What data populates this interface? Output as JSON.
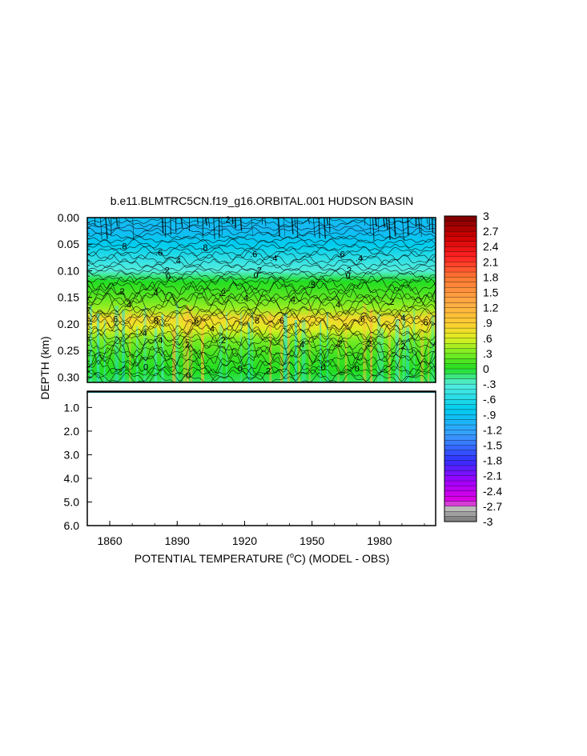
{
  "chart_data": {
    "type": "heatmap",
    "title": "b.e11.BLMTRC5CN.f19_g16.ORBITAL.001 HUDSON BASIN",
    "xlabel_pre": "POTENTIAL TEMPERATURE (",
    "xlabel_sup": "o",
    "xlabel_post": "C) (MODEL - OBS)",
    "ylabel": "DEPTH (km)",
    "xlim": [
      1850,
      2005
    ],
    "x_ticks": [
      1860,
      1890,
      1920,
      1950,
      1980
    ],
    "upper_panel": {
      "ylim": [
        0.0,
        0.31
      ],
      "y_ticks": [
        "0.00",
        "0.05",
        "0.10",
        "0.15",
        "0.20",
        "0.25",
        "0.30"
      ],
      "depth_profile": [
        {
          "depth": 0.0,
          "value": -0.9
        },
        {
          "depth": 0.02,
          "value": -1.0
        },
        {
          "depth": 0.05,
          "value": -0.8
        },
        {
          "depth": 0.08,
          "value": -0.5
        },
        {
          "depth": 0.1,
          "value": -0.3
        },
        {
          "depth": 0.12,
          "value": 0.0
        },
        {
          "depth": 0.15,
          "value": 0.2
        },
        {
          "depth": 0.17,
          "value": 0.4
        },
        {
          "depth": 0.19,
          "value": 0.8
        },
        {
          "depth": 0.21,
          "value": 0.6
        },
        {
          "depth": 0.23,
          "value": 0.3
        },
        {
          "depth": 0.26,
          "value": 0.1
        },
        {
          "depth": 0.29,
          "value": 0.0
        },
        {
          "depth": 0.31,
          "value": -0.1
        }
      ],
      "contour_labels": [
        {
          "x": 1912,
          "depth": 0.005,
          "text": ".2"
        },
        {
          "x": 1866,
          "depth": 0.055,
          "text": ".8"
        },
        {
          "x": 1902,
          "depth": 0.057,
          "text": ".8"
        },
        {
          "x": 1882,
          "depth": 0.067,
          "text": ".6"
        },
        {
          "x": 1890,
          "depth": 0.082,
          "text": ".4"
        },
        {
          "x": 1924,
          "depth": 0.07,
          "text": ".6"
        },
        {
          "x": 1933,
          "depth": 0.078,
          "text": ".4"
        },
        {
          "x": 1963,
          "depth": 0.07,
          "text": ".6"
        },
        {
          "x": 1971,
          "depth": 0.078,
          "text": ".4"
        },
        {
          "x": 1885,
          "depth": 0.1,
          "text": ".2"
        },
        {
          "x": 1886,
          "depth": 0.112,
          "text": "0"
        },
        {
          "x": 1926,
          "depth": 0.1,
          "text": ".2"
        },
        {
          "x": 1925,
          "depth": 0.11,
          "text": "0"
        },
        {
          "x": 1966,
          "depth": 0.1,
          "text": ".2"
        },
        {
          "x": 1966,
          "depth": 0.11,
          "text": "0"
        },
        {
          "x": 1865,
          "depth": 0.14,
          "text": ".2"
        },
        {
          "x": 1880,
          "depth": 0.142,
          "text": ".4"
        },
        {
          "x": 1910,
          "depth": 0.143,
          "text": ".2"
        },
        {
          "x": 1950,
          "depth": 0.128,
          "text": ".5"
        },
        {
          "x": 1920,
          "depth": 0.152,
          "text": ".4"
        },
        {
          "x": 1941,
          "depth": 0.155,
          "text": ".4"
        },
        {
          "x": 1961,
          "depth": 0.165,
          "text": ".4"
        },
        {
          "x": 1868,
          "depth": 0.165,
          "text": ".4"
        },
        {
          "x": 1985,
          "depth": 0.16,
          "text": ".2"
        },
        {
          "x": 1862,
          "depth": 0.192,
          "text": ".6"
        },
        {
          "x": 1880,
          "depth": 0.195,
          "text": ".8"
        },
        {
          "x": 1898,
          "depth": 0.195,
          "text": ".6"
        },
        {
          "x": 1925,
          "depth": 0.195,
          "text": ".8"
        },
        {
          "x": 1936,
          "depth": 0.195,
          "text": ".6"
        },
        {
          "x": 1972,
          "depth": 0.192,
          "text": ".6"
        },
        {
          "x": 1990,
          "depth": 0.19,
          "text": ".4"
        },
        {
          "x": 2000,
          "depth": 0.198,
          "text": ".6"
        },
        {
          "x": 1875,
          "depth": 0.218,
          "text": ".4"
        },
        {
          "x": 1905,
          "depth": 0.21,
          "text": ".4"
        },
        {
          "x": 1882,
          "depth": 0.232,
          "text": ".4"
        },
        {
          "x": 1894,
          "depth": 0.24,
          "text": ".2"
        },
        {
          "x": 1910,
          "depth": 0.232,
          "text": ".2"
        },
        {
          "x": 1945,
          "depth": 0.24,
          "text": ".4"
        },
        {
          "x": 1962,
          "depth": 0.238,
          "text": ".2"
        },
        {
          "x": 1975,
          "depth": 0.238,
          "text": ".2"
        },
        {
          "x": 1990,
          "depth": 0.243,
          "text": ".2"
        },
        {
          "x": 1876,
          "depth": 0.282,
          "text": "0"
        },
        {
          "x": 1895,
          "depth": 0.298,
          "text": "0"
        },
        {
          "x": 1918,
          "depth": 0.285,
          "text": "0"
        },
        {
          "x": 1930,
          "depth": 0.29,
          "text": ".2"
        },
        {
          "x": 1955,
          "depth": 0.283,
          "text": "0"
        },
        {
          "x": 1970,
          "depth": 0.285,
          "text": "0"
        }
      ]
    },
    "lower_panel": {
      "ylim": [
        0.31,
        6.0
      ],
      "y_ticks": [
        "1.0",
        "2.0",
        "3.0",
        "4.0",
        "5.0",
        "6.0"
      ],
      "note_fill_to_depth": 0.36
    },
    "colorbar": {
      "min": -3,
      "max": 3,
      "step": 0.1,
      "labels": [
        "3",
        "2.7",
        "2.4",
        "2.1",
        "1.8",
        "1.5",
        "1.2",
        ".9",
        ".6",
        ".3",
        "0",
        "-.3",
        "-.6",
        "-.9",
        "-1.2",
        "-1.5",
        "-1.8",
        "-2.1",
        "-2.4",
        "-2.7",
        "-3"
      ],
      "color_stops": [
        {
          "value": -3.0,
          "color": "#777777"
        },
        {
          "value": -2.75,
          "color": "#bbbbbb"
        },
        {
          "value": -2.6,
          "color": "#e000e0"
        },
        {
          "value": -2.2,
          "color": "#a000ff"
        },
        {
          "value": -1.8,
          "color": "#3030ff"
        },
        {
          "value": -1.3,
          "color": "#3a9cff"
        },
        {
          "value": -0.8,
          "color": "#00ccee"
        },
        {
          "value": -0.3,
          "color": "#55eedd"
        },
        {
          "value": 0.0,
          "color": "#22dd22"
        },
        {
          "value": 0.35,
          "color": "#88ee22"
        },
        {
          "value": 0.6,
          "color": "#ddee22"
        },
        {
          "value": 0.9,
          "color": "#ffcc33"
        },
        {
          "value": 1.3,
          "color": "#ffaa44"
        },
        {
          "value": 1.8,
          "color": "#ff7733"
        },
        {
          "value": 2.2,
          "color": "#ff2222"
        },
        {
          "value": 2.6,
          "color": "#cc0000"
        },
        {
          "value": 3.0,
          "color": "#770000"
        }
      ]
    }
  }
}
